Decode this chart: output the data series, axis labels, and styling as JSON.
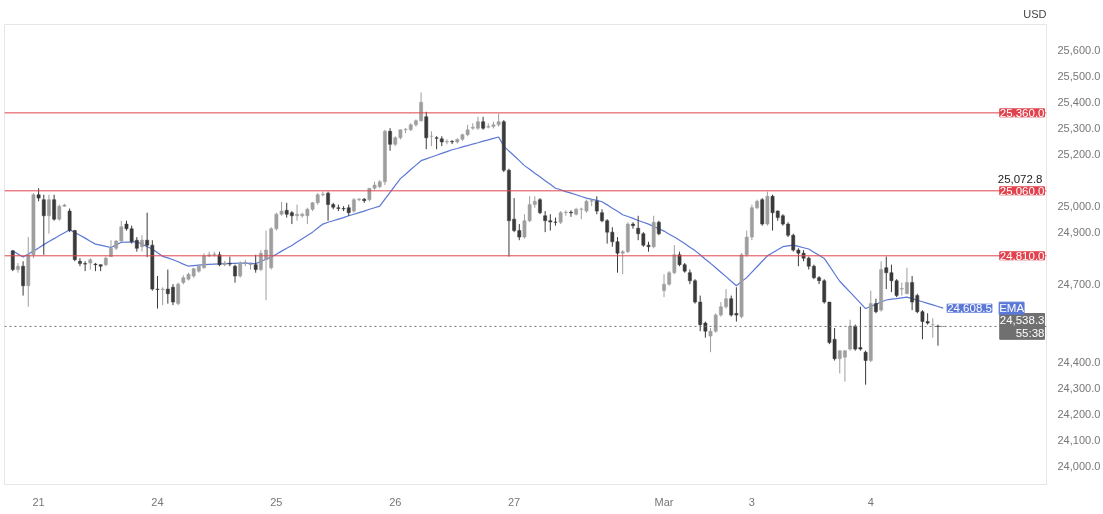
{
  "chart_data": {
    "type": "candlestick",
    "ylabel": "USD",
    "categories": [
      null,
      null,
      null,
      null,
      null,
      "21",
      null,
      null,
      null,
      null,
      null,
      null,
      null,
      null,
      null,
      null,
      null,
      null,
      null,
      null,
      null,
      null,
      null,
      null,
      null,
      null,
      null,
      null,
      "24",
      null,
      null,
      null,
      null,
      null,
      null,
      null,
      null,
      null,
      null,
      null,
      null,
      null,
      null,
      null,
      null,
      null,
      null,
      null,
      null,
      null,
      null,
      "25",
      null,
      null,
      null,
      null,
      null,
      null,
      null,
      null,
      null,
      null,
      null,
      null,
      null,
      null,
      null,
      null,
      null,
      null,
      null,
      null,
      null,
      null,
      "26",
      null,
      null,
      null,
      null,
      null,
      null,
      null,
      null,
      null,
      null,
      null,
      null,
      null,
      null,
      null,
      null,
      null,
      null,
      null,
      null,
      null,
      null,
      "27",
      null,
      null,
      null,
      null,
      null,
      null,
      null,
      null,
      null,
      null,
      null,
      null,
      null,
      null,
      null,
      null,
      null,
      null,
      null,
      null,
      null,
      null,
      null,
      null,
      null,
      null,
      null,
      null,
      "Mar",
      null,
      null,
      null,
      null,
      null,
      null,
      null,
      null,
      null,
      null,
      null,
      null,
      null,
      null,
      null,
      null,
      "3",
      null,
      null,
      null,
      null,
      null,
      null,
      null,
      null,
      null,
      null,
      null,
      null,
      null,
      null,
      null,
      null,
      null,
      null,
      null,
      null,
      null,
      null,
      "4",
      null,
      null,
      null,
      null,
      null,
      null,
      null,
      null,
      null,
      null,
      null,
      null,
      null,
      null
    ],
    "ohlc": [
      [
        24829,
        24832,
        24751,
        24757
      ],
      [
        24757,
        24782,
        24745,
        24770
      ],
      [
        24770,
        24789,
        24657,
        24695
      ],
      [
        24695,
        24882,
        24614,
        24814
      ],
      [
        24814,
        25051,
        24801,
        25045
      ],
      [
        25045,
        25070,
        25020,
        25032
      ],
      [
        25026,
        25045,
        24814,
        24964
      ],
      [
        24964,
        25045,
        24895,
        25026
      ],
      [
        25026,
        25045,
        24945,
        24951
      ],
      [
        24951,
        25007,
        24945,
        25001
      ],
      [
        25001,
        25010,
        24998,
        25005
      ],
      [
        24982,
        24992,
        24901,
        24907
      ],
      [
        24907,
        24910,
        24789,
        24795
      ],
      [
        24789,
        24801,
        24770,
        24780
      ],
      [
        24780,
        24789,
        24751,
        24778
      ],
      [
        24782,
        24801,
        24757,
        24795
      ],
      [
        24778,
        24782,
        24751,
        24776
      ],
      [
        24776,
        24776,
        24751,
        24770
      ],
      [
        24776,
        24807,
        24770,
        24801
      ],
      [
        24807,
        24870,
        24805,
        24839
      ],
      [
        24839,
        24870,
        24832,
        24867
      ],
      [
        24867,
        24945,
        24864,
        24922
      ],
      [
        24932,
        24945,
        24907,
        24914
      ],
      [
        24914,
        24926,
        24857,
        24864
      ],
      [
        24870,
        24882,
        24826,
        24839
      ],
      [
        24845,
        24889,
        24826,
        24870
      ],
      [
        24870,
        24976,
        24805,
        24851
      ],
      [
        24851,
        24870,
        24676,
        24682
      ],
      [
        24682,
        24732,
        24607,
        24680
      ],
      [
        24680,
        24689,
        24620,
        24682
      ],
      [
        24682,
        24757,
        24626,
        24664
      ],
      [
        24689,
        24701,
        24620,
        24632
      ],
      [
        24626,
        24707,
        24620,
        24701
      ],
      [
        24707,
        24735,
        24700,
        24726
      ],
      [
        24720,
        24745,
        24715,
        24739
      ],
      [
        24732,
        24764,
        24725,
        24760
      ],
      [
        24751,
        24776,
        24745,
        24770
      ],
      [
        24764,
        24820,
        24760,
        24810
      ],
      [
        24810,
        24826,
        24805,
        24814
      ],
      [
        24814,
        24826,
        24807,
        24816
      ],
      [
        24814,
        24826,
        24770,
        24776
      ],
      [
        24776,
        24790,
        24770,
        24782
      ],
      [
        24780,
        24807,
        24770,
        24778
      ],
      [
        24770,
        24776,
        24707,
        24732
      ],
      [
        24732,
        24789,
        24726,
        24782
      ],
      [
        24782,
        24795,
        24770,
        24784
      ],
      [
        24776,
        24785,
        24757,
        24778
      ],
      [
        24776,
        24814,
        24745,
        24757
      ],
      [
        24757,
        24832,
        24751,
        24820
      ],
      [
        24795,
        24907,
        24639,
        24832
      ],
      [
        24764,
        24920,
        24757,
        24914
      ],
      [
        24914,
        24976,
        24907,
        24970
      ],
      [
        24970,
        25017,
        24964,
        24982
      ],
      [
        24985,
        25014,
        24957,
        24970
      ],
      [
        24976,
        24982,
        24932,
        24964
      ],
      [
        24964,
        25007,
        24945,
        24970
      ],
      [
        24964,
        24976,
        24957,
        24970
      ],
      [
        24964,
        24995,
        24932,
        24989
      ],
      [
        24989,
        25017,
        24982,
        25014
      ],
      [
        25014,
        25051,
        25007,
        25045
      ],
      [
        25045,
        25057,
        25039,
        25047
      ],
      [
        25051,
        25057,
        24945,
        25007
      ],
      [
        25007,
        25014,
        24989,
        24997
      ],
      [
        24995,
        25007,
        24982,
        24992
      ],
      [
        24992,
        25001,
        24982,
        24990
      ],
      [
        24995,
        25007,
        24964,
        24976
      ],
      [
        24982,
        25032,
        24976,
        25026
      ],
      [
        25026,
        25032,
        25020,
        25028
      ],
      [
        25028,
        25032,
        25014,
        25022
      ],
      [
        25026,
        25070,
        25020,
        25070
      ],
      [
        25070,
        25095,
        25064,
        25082
      ],
      [
        25076,
        25101,
        25070,
        25095
      ],
      [
        25095,
        25295,
        25082,
        25289
      ],
      [
        25289,
        25301,
        25214,
        25239
      ],
      [
        25239,
        25270,
        25232,
        25264
      ],
      [
        25264,
        25295,
        25258,
        25295
      ],
      [
        25295,
        25301,
        25282,
        25297
      ],
      [
        25295,
        25320,
        25290,
        25314
      ],
      [
        25314,
        25335,
        25307,
        25330
      ],
      [
        25330,
        25439,
        25326,
        25401
      ],
      [
        25345,
        25364,
        25220,
        25264
      ],
      [
        25270,
        25289,
        25232,
        25270
      ],
      [
        25264,
        25270,
        25220,
        25262
      ],
      [
        25260,
        25270,
        25232,
        25248
      ],
      [
        25248,
        25258,
        25239,
        25250
      ],
      [
        25250,
        25255,
        25240,
        25248
      ],
      [
        25248,
        25262,
        25242,
        25258
      ],
      [
        25258,
        25280,
        25252,
        25276
      ],
      [
        25276,
        25314,
        25270,
        25295
      ],
      [
        25301,
        25320,
        25295,
        25305
      ],
      [
        25301,
        25345,
        25295,
        25326
      ],
      [
        25326,
        25345,
        25295,
        25301
      ],
      [
        25305,
        25320,
        25300,
        25308
      ],
      [
        25308,
        25326,
        25300,
        25314
      ],
      [
        25314,
        25357,
        25307,
        25326
      ],
      [
        25326,
        25332,
        25132,
        25139
      ],
      [
        25139,
        25145,
        24807,
        24945
      ],
      [
        24951,
        25032,
        24901,
        24907
      ],
      [
        24907,
        24932,
        24870,
        24882
      ],
      [
        24882,
        24970,
        24876,
        24945
      ],
      [
        24945,
        25039,
        24939,
        25007
      ],
      [
        25007,
        25039,
        24995,
        25020
      ],
      [
        25026,
        25032,
        24970,
        24976
      ],
      [
        24964,
        24982,
        24901,
        24945
      ],
      [
        24945,
        24970,
        24907,
        24940
      ],
      [
        24940,
        24957,
        24926,
        24939
      ],
      [
        24939,
        24982,
        24932,
        24976
      ],
      [
        24976,
        24985,
        24964,
        24978
      ],
      [
        24978,
        24985,
        24960,
        24975
      ],
      [
        24970,
        24995,
        24965,
        24989
      ],
      [
        24989,
        24995,
        24951,
        24990
      ],
      [
        24982,
        25026,
        24976,
        25020
      ],
      [
        25020,
        25030,
        25001,
        25022
      ],
      [
        25020,
        25039,
        24970,
        24982
      ],
      [
        24976,
        24989,
        24939,
        24945
      ],
      [
        24945,
        24951,
        24857,
        24901
      ],
      [
        24901,
        24920,
        24845,
        24864
      ],
      [
        24864,
        24882,
        24745,
        24820
      ],
      [
        24820,
        24832,
        24739,
        24826
      ],
      [
        24826,
        24939,
        24820,
        24932
      ],
      [
        24932,
        24939,
        24914,
        24926
      ],
      [
        24916,
        24964,
        24870,
        24895
      ],
      [
        24895,
        24901,
        24845,
        24851
      ],
      [
        24851,
        24864,
        24826,
        24845
      ],
      [
        24845,
        24964,
        24839,
        24939
      ],
      [
        24939,
        24945,
        24889,
        24895
      ],
      [
        24676,
        24739,
        24651,
        24701
      ],
      [
        24701,
        24751,
        24695,
        24745
      ],
      [
        24745,
        24851,
        24739,
        24814
      ],
      [
        24814,
        24826,
        24770,
        24776
      ],
      [
        24776,
        24782,
        24745,
        24751
      ],
      [
        24745,
        24757,
        24701,
        24714
      ],
      [
        24714,
        24720,
        24626,
        24632
      ],
      [
        24632,
        24657,
        24520,
        24545
      ],
      [
        24551,
        24557,
        24495,
        24520
      ],
      [
        24501,
        24532,
        24439,
        24520
      ],
      [
        24520,
        24589,
        24514,
        24582
      ],
      [
        24582,
        24632,
        24576,
        24614
      ],
      [
        24614,
        24682,
        24607,
        24645
      ],
      [
        24645,
        24657,
        24576,
        24582
      ],
      [
        24588,
        24689,
        24557,
        24582
      ],
      [
        24576,
        24820,
        24570,
        24814
      ],
      [
        24814,
        24907,
        24807,
        24882
      ],
      [
        24882,
        25007,
        24870,
        24995
      ],
      [
        24995,
        25026,
        24989,
        25020
      ],
      [
        25026,
        25032,
        24926,
        24932
      ],
      [
        24932,
        25057,
        24926,
        25039
      ],
      [
        25039,
        25045,
        24907,
        24976
      ],
      [
        24982,
        24985,
        24945,
        24957
      ],
      [
        24964,
        24970,
        24926,
        24932
      ],
      [
        24932,
        24939,
        24882,
        24889
      ],
      [
        24889,
        24895,
        24826,
        24832
      ],
      [
        24832,
        24839,
        24770,
        24820
      ],
      [
        24820,
        24832,
        24789,
        24801
      ],
      [
        24801,
        24807,
        24757,
        24770
      ],
      [
        24770,
        24776,
        24720,
        24726
      ],
      [
        24726,
        24732,
        24701,
        24714
      ],
      [
        24714,
        24720,
        24626,
        24632
      ],
      [
        24632,
        24632,
        24470,
        24476
      ],
      [
        24489,
        24532,
        24407,
        24414
      ],
      [
        24414,
        24445,
        24357,
        24445
      ],
      [
        24420,
        24445,
        24326,
        24445
      ],
      [
        24451,
        24564,
        24445,
        24539
      ],
      [
        24539,
        24545,
        24445,
        24451
      ],
      [
        24457,
        24614,
        24445,
        24451
      ],
      [
        24439,
        24445,
        24314,
        24407
      ],
      [
        24407,
        24676,
        24401,
        24626
      ],
      [
        24626,
        24645,
        24589,
        24595
      ],
      [
        24601,
        24789,
        24595,
        24757
      ],
      [
        24764,
        24807,
        24682,
        24745
      ],
      [
        24745,
        24776,
        24670,
        24714
      ],
      [
        24714,
        24720,
        24651,
        24657
      ],
      [
        24682,
        24707,
        24657,
        24684
      ],
      [
        24664,
        24764,
        24664,
        24707
      ],
      [
        24707,
        24732,
        24601,
        24632
      ],
      [
        24657,
        24664,
        24589,
        24595
      ],
      [
        24595,
        24601,
        24489,
        24557
      ],
      [
        24557,
        24589,
        24545,
        24551
      ],
      [
        24545,
        24570,
        24495,
        24545
      ],
      [
        24539,
        24545,
        24464,
        24538
      ],
      [
        24538,
        24540,
        24536,
        24538.3
      ]
    ],
    "colors": [
      "#3a3a3a",
      "#9e9e9e",
      "#3a3a3a",
      "#9e9e9e",
      "#9e9e9e",
      "#3a3a3a",
      "#3a3a3a",
      "#9e9e9e",
      "#3a3a3a",
      "#9e9e9e",
      "#9e9e9e",
      "#3a3a3a",
      "#3a3a3a",
      "#3a3a3a",
      "#3a3a3a",
      "#9e9e9e",
      "#3a3a3a",
      "#3a3a3a",
      "#9e9e9e",
      "#9e9e9e",
      "#9e9e9e",
      "#9e9e9e",
      "#3a3a3a",
      "#3a3a3a",
      "#3a3a3a",
      "#9e9e9e",
      "#3a3a3a",
      "#3a3a3a",
      "#3a3a3a",
      "#9e9e9e",
      "#3a3a3a",
      "#3a3a3a",
      "#9e9e9e",
      "#9e9e9e",
      "#9e9e9e",
      "#9e9e9e",
      "#9e9e9e",
      "#9e9e9e",
      "#9e9e9e",
      "#9e9e9e",
      "#3a3a3a",
      "#9e9e9e",
      "#3a3a3a",
      "#3a3a3a",
      "#9e9e9e",
      "#9e9e9e",
      "#9e9e9e",
      "#3a3a3a",
      "#9e9e9e",
      "#9e9e9e",
      "#9e9e9e",
      "#9e9e9e",
      "#9e9e9e",
      "#3a3a3a",
      "#3a3a3a",
      "#9e9e9e",
      "#9e9e9e",
      "#9e9e9e",
      "#9e9e9e",
      "#9e9e9e",
      "#9e9e9e",
      "#3a3a3a",
      "#3a3a3a",
      "#3a3a3a",
      "#3a3a3a",
      "#3a3a3a",
      "#9e9e9e",
      "#9e9e9e",
      "#3a3a3a",
      "#9e9e9e",
      "#9e9e9e",
      "#9e9e9e",
      "#9e9e9e",
      "#3a3a3a",
      "#9e9e9e",
      "#9e9e9e",
      "#9e9e9e",
      "#9e9e9e",
      "#9e9e9e",
      "#9e9e9e",
      "#3a3a3a",
      "#9e9e9e",
      "#3a3a3a",
      "#3a3a3a",
      "#9e9e9e",
      "#3a3a3a",
      "#9e9e9e",
      "#9e9e9e",
      "#9e9e9e",
      "#9e9e9e",
      "#9e9e9e",
      "#3a3a3a",
      "#9e9e9e",
      "#9e9e9e",
      "#9e9e9e",
      "#3a3a3a",
      "#3a3a3a",
      "#3a3a3a",
      "#3a3a3a",
      "#9e9e9e",
      "#9e9e9e",
      "#9e9e9e",
      "#3a3a3a",
      "#3a3a3a",
      "#3a3a3a",
      "#3a3a3a",
      "#9e9e9e",
      "#9e9e9e",
      "#3a3a3a",
      "#9e9e9e",
      "#9e9e9e",
      "#9e9e9e",
      "#9e9e9e",
      "#3a3a3a",
      "#3a3a3a",
      "#3a3a3a",
      "#3a3a3a",
      "#3a3a3a",
      "#9e9e9e",
      "#9e9e9e",
      "#3a3a3a",
      "#3a3a3a",
      "#3a3a3a",
      "#3a3a3a",
      "#9e9e9e",
      "#3a3a3a",
      "#9e9e9e",
      "#9e9e9e",
      "#9e9e9e",
      "#3a3a3a",
      "#3a3a3a",
      "#3a3a3a",
      "#3a3a3a",
      "#3a3a3a",
      "#3a3a3a",
      "#9e9e9e",
      "#9e9e9e",
      "#9e9e9e",
      "#9e9e9e",
      "#3a3a3a",
      "#3a3a3a",
      "#9e9e9e",
      "#9e9e9e",
      "#9e9e9e",
      "#9e9e9e",
      "#3a3a3a",
      "#9e9e9e",
      "#3a3a3a",
      "#3a3a3a",
      "#3a3a3a",
      "#3a3a3a",
      "#3a3a3a",
      "#3a3a3a",
      "#3a3a3a",
      "#3a3a3a",
      "#3a3a3a",
      "#3a3a3a",
      "#3a3a3a",
      "#3a3a3a",
      "#3a3a3a",
      "#9e9e9e",
      "#9e9e9e",
      "#9e9e9e",
      "#3a3a3a",
      "#3a3a3a",
      "#3a3a3a",
      "#9e9e9e",
      "#3a3a3a",
      "#9e9e9e",
      "#3a3a3a",
      "#3a3a3a",
      "#3a3a3a",
      "#9e9e9e",
      "#9e9e9e",
      "#3a3a3a",
      "#3a3a3a",
      "#3a3a3a",
      "#3a3a3a",
      "#9e9e9e",
      "#3a3a3a",
      "#9e9e9e"
    ],
    "series": [
      {
        "type": "line",
        "name": "EMA",
        "color": "#5b78d6",
        "values": [
          24829,
          24817,
          24805,
          24817,
          24828,
          24840,
          24853,
          24865,
          24876,
          24888,
          24899,
          24910,
          24900,
          24889,
          24878,
          24866,
          24855,
          24851,
          24846,
          24842,
          24852,
          24862,
          24863,
          24863,
          24864,
          24855,
          24845,
          24836,
          24822,
          24808,
          24802,
          24795,
          24787,
          24778,
          24770,
          24772,
          24774,
          24776,
          24777,
          24778,
          24779,
          24780,
          24781,
          24781,
          24782,
          24782,
          24781,
          24780,
          24788,
          24797,
          24805,
          24816,
          24828,
          24839,
          24850,
          24863,
          24876,
          24888,
          24901,
          24917,
          24932,
          24939,
          24945,
          24951,
          24957,
          24964,
          24970,
          24976,
          24982,
          24989,
          24995,
          25001,
          25028,
          25054,
          25081,
          25107,
          25124,
          25142,
          25159,
          25176,
          25183,
          25190,
          25197,
          25204,
          25211,
          25218,
          25223,
          25229,
          25234,
          25240,
          25245,
          25251,
          25256,
          25262,
          25267,
          25232,
          25213,
          25195,
          25176,
          25157,
          25143,
          25128,
          25114,
          25099,
          25085,
          25070,
          25064,
          25057,
          25051,
          25045,
          25038,
          25032,
          25027,
          25023,
          25018,
          25006,
          24993,
          24981,
          24968,
          24961,
          24954,
          24946,
          24939,
          24932,
          24923,
          24914,
          24905,
          24893,
          24882,
          24870,
          24857,
          24843,
          24830,
          24814,
          24797,
          24781,
          24764,
          24747,
          24730,
          24712,
          24695,
          24711,
          24726,
          24747,
          24768,
          24789,
          24810,
          24822,
          24833,
          24845,
          24848,
          24851,
          24846,
          24841,
          24836,
          24824,
          24812,
          24800,
          24771,
          24741,
          24712,
          24691,
          24670,
          24649,
          24628,
          24607,
          24615,
          24623,
          24632,
          24640,
          24643,
          24645,
          24648,
          24651,
          24645,
          24639,
          24633,
          24627,
          24621,
          24615,
          24608.5
        ],
        "value_labels": [
          null,
          null,
          null,
          null,
          null,
          null,
          null,
          null,
          null,
          null,
          null,
          null,
          null,
          null,
          null,
          null,
          null,
          null,
          null,
          null,
          null,
          null,
          null,
          null,
          null,
          null,
          null,
          null,
          null,
          null,
          null,
          null,
          null,
          null,
          null,
          null,
          null,
          null,
          null,
          null,
          null,
          null,
          null,
          null,
          null,
          null,
          null,
          null,
          null,
          null,
          null,
          null,
          null,
          null,
          null,
          null,
          null,
          null,
          null,
          null,
          null,
          null,
          null,
          null,
          null,
          null,
          null,
          null,
          null,
          null,
          null,
          null,
          null,
          null,
          null,
          null,
          null,
          null,
          null,
          null,
          null,
          null,
          null,
          null,
          null,
          null,
          null,
          null,
          null,
          null,
          null,
          null,
          null,
          null,
          null,
          null,
          null,
          null,
          null,
          null,
          null,
          null,
          null,
          null,
          null,
          null,
          null,
          null,
          null,
          null,
          null,
          null,
          null,
          null,
          null,
          null,
          null,
          null,
          null,
          null,
          null,
          null,
          null,
          null,
          null,
          null,
          null,
          null,
          null,
          null,
          null,
          null,
          null,
          null,
          null,
          null,
          null,
          null,
          null,
          null,
          null,
          null,
          null,
          null,
          null,
          null,
          null,
          null,
          null,
          null,
          null,
          null,
          null,
          null,
          null,
          null,
          null,
          null,
          null,
          null,
          null,
          null,
          null,
          null,
          null,
          null,
          null,
          null,
          null,
          null,
          null,
          null,
          null,
          null,
          null,
          null,
          null,
          null,
          null,
          null,
          "24,608.5"
        ]
      }
    ],
    "ylim": [
      23930,
      25700
    ],
    "yticks": [
      {
        "value": 24000,
        "label": "24,000.0"
      },
      {
        "value": 24100,
        "label": "24,100.0"
      },
      {
        "value": 24200,
        "label": "24,200.0"
      },
      {
        "value": 24300,
        "label": "24,300.0"
      },
      {
        "value": 24400,
        "label": "24,400.0"
      },
      {
        "value": 24700,
        "label": "24,700.0"
      },
      {
        "value": 24900,
        "label": "24,900.0"
      },
      {
        "value": 25000,
        "label": "25,000.0"
      },
      {
        "value": 25200,
        "label": "25,200.0"
      },
      {
        "value": 25300,
        "label": "25,300.0"
      },
      {
        "value": 25400,
        "label": "25,400.0"
      },
      {
        "value": 25500,
        "label": "25,500.0"
      },
      {
        "value": 25600,
        "label": "25,600.0"
      }
    ],
    "ref_lines": [
      {
        "axis": "y",
        "value": 25360,
        "label": "25,360.0",
        "color": "#e0434d"
      },
      {
        "axis": "y",
        "value": 25060,
        "label": "25,060.0",
        "color": "#e0434d"
      },
      {
        "axis": "y",
        "value": 24810,
        "label": "24,810.0",
        "color": "#e0434d"
      },
      {
        "axis": "y",
        "value": 24538.3,
        "label": "24,538.3\n55:38",
        "color": "#707070",
        "line_style": "dotted"
      }
    ],
    "annotations": [
      {
        "text": "25,072.8",
        "y": 25072.8
      }
    ],
    "grid": false
  }
}
